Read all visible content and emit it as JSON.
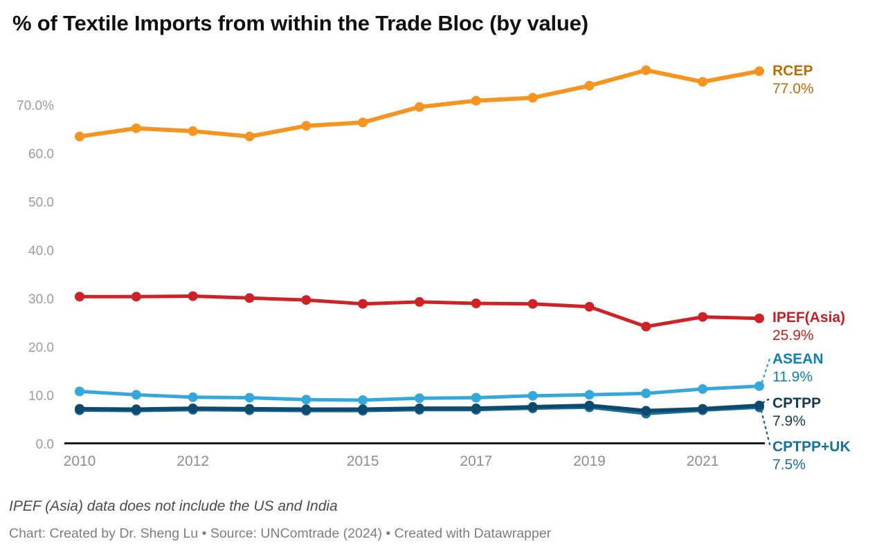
{
  "title": "% of Textile Imports from within the Trade Bloc (by value)",
  "note": "IPEF (Asia) data does not include the US and India",
  "byline": "Chart: Created by Dr. Sheng Lu • Source: UNComtrade (2024) • Created with Datawrapper",
  "chart_data": {
    "type": "line",
    "x": [
      2010,
      2011,
      2012,
      2013,
      2014,
      2015,
      2016,
      2017,
      2018,
      2019,
      2020,
      2021,
      2022
    ],
    "x_tick_labels": [
      "2010",
      "2012",
      "2015",
      "2017",
      "2019",
      "2021"
    ],
    "x_tick_years": [
      2010,
      2012,
      2015,
      2017,
      2019,
      2021
    ],
    "y_ticks": [
      {
        "value": 70,
        "label": "70.0%"
      },
      {
        "value": 60,
        "label": "60.0"
      },
      {
        "value": 50,
        "label": "50.0"
      },
      {
        "value": 40,
        "label": "40.0"
      },
      {
        "value": 30,
        "label": "30.0"
      },
      {
        "value": 20,
        "label": "20.0"
      },
      {
        "value": 10,
        "label": "10.0"
      },
      {
        "value": 0,
        "label": "0.0"
      }
    ],
    "ylim": [
      0,
      80
    ],
    "grid": false,
    "legend_position": "right-edge-direct-labels",
    "series": [
      {
        "name": "RCEP",
        "end_label": "77.0%",
        "color": "#F5941F",
        "label_color": "#C26A02",
        "values": [
          63.5,
          65.2,
          64.6,
          63.5,
          65.7,
          66.4,
          69.6,
          70.9,
          71.5,
          74.0,
          77.2,
          74.8,
          77.0
        ]
      },
      {
        "name": "IPEF(Asia)",
        "end_label": "25.9%",
        "color": "#CE2227",
        "label_color": "#C01F24",
        "values": [
          30.4,
          30.4,
          30.5,
          30.1,
          29.7,
          28.9,
          29.3,
          29.0,
          28.9,
          28.3,
          24.2,
          26.2,
          25.9
        ]
      },
      {
        "name": "ASEAN",
        "end_label": "11.9%",
        "color": "#35A8DB",
        "label_color": "#1180AF",
        "values": [
          10.8,
          10.1,
          9.6,
          9.5,
          9.1,
          9.0,
          9.4,
          9.5,
          9.9,
          10.1,
          10.4,
          11.3,
          11.9
        ]
      },
      {
        "name": "CPTPP",
        "end_label": "7.9%",
        "color": "#0E4A6E",
        "label_color": "#123A52",
        "values": [
          7.2,
          7.1,
          7.3,
          7.2,
          7.1,
          7.1,
          7.3,
          7.3,
          7.6,
          7.9,
          6.8,
          7.2,
          7.9
        ]
      },
      {
        "name": "CPTPP+UK",
        "end_label": "7.5%",
        "color": "#1A6E99",
        "label_color": "#15719F",
        "values": [
          6.9,
          6.8,
          7.0,
          6.9,
          6.8,
          6.8,
          7.0,
          7.0,
          7.3,
          7.5,
          6.2,
          6.9,
          7.5
        ]
      }
    ]
  }
}
